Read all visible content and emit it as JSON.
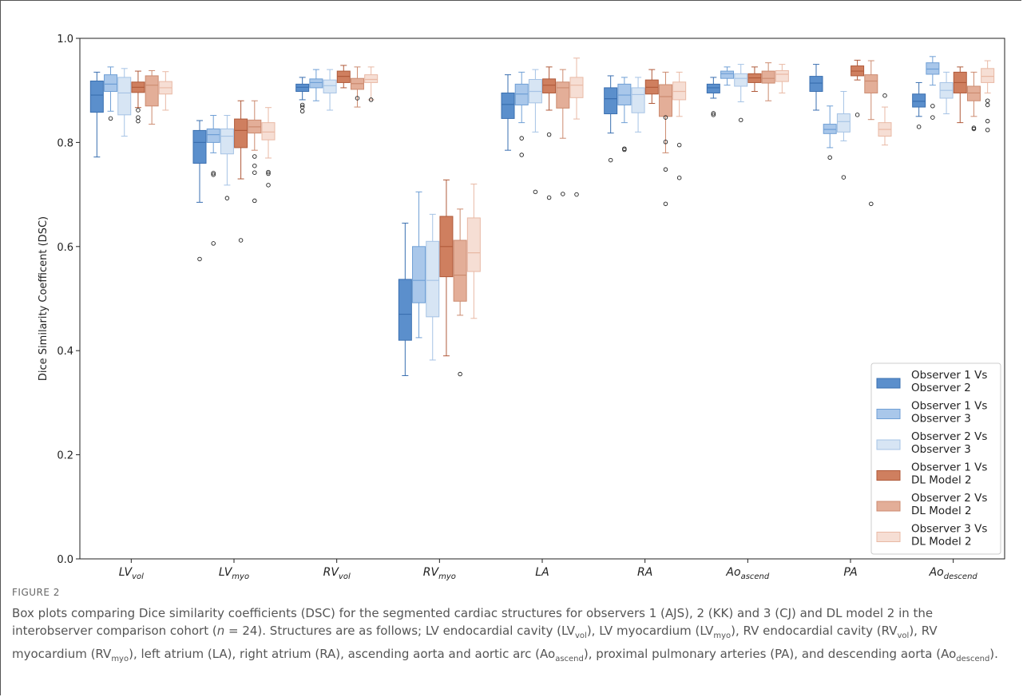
{
  "chart_data": {
    "type": "box",
    "ylabel": "Dice Similarity Coefficent (DSC)",
    "ylim": [
      0.0,
      1.0
    ],
    "yticks": [
      "0.0",
      "0.2",
      "0.4",
      "0.6",
      "0.8",
      "1.0"
    ],
    "grid": false,
    "legend_position": "lower-right",
    "categories": [
      {
        "base": "LV",
        "sub": "vol"
      },
      {
        "base": "LV",
        "sub": "myo"
      },
      {
        "base": "RV",
        "sub": "vol"
      },
      {
        "base": "RV",
        "sub": "myo"
      },
      {
        "base": "LA",
        "sub": ""
      },
      {
        "base": "RA",
        "sub": ""
      },
      {
        "base": "Ao",
        "sub": "ascend"
      },
      {
        "base": "PA",
        "sub": ""
      },
      {
        "base": "Ao",
        "sub": "descend"
      }
    ],
    "series": [
      {
        "name": "Observer 1 Vs Observer 2",
        "legend_lines": [
          "Observer 1 Vs",
          "Observer 2"
        ],
        "fill": "#5b8fcc",
        "line": "#3a6fb0",
        "boxes": [
          {
            "wlo": 0.772,
            "q1": 0.858,
            "med": 0.891,
            "q3": 0.918,
            "whi": 0.935,
            "out": []
          },
          {
            "wlo": 0.685,
            "q1": 0.76,
            "med": 0.8,
            "q3": 0.823,
            "whi": 0.842,
            "out": [
              0.576
            ]
          },
          {
            "wlo": 0.882,
            "q1": 0.898,
            "med": 0.906,
            "q3": 0.912,
            "whi": 0.925,
            "out": [
              0.872,
              0.868,
              0.86
            ]
          },
          {
            "wlo": 0.352,
            "q1": 0.42,
            "med": 0.47,
            "q3": 0.537,
            "whi": 0.645,
            "out": []
          },
          {
            "wlo": 0.785,
            "q1": 0.846,
            "med": 0.873,
            "q3": 0.895,
            "whi": 0.93,
            "out": []
          },
          {
            "wlo": 0.818,
            "q1": 0.855,
            "med": 0.884,
            "q3": 0.905,
            "whi": 0.928,
            "out": [
              0.766
            ]
          },
          {
            "wlo": 0.885,
            "q1": 0.895,
            "med": 0.905,
            "q3": 0.912,
            "whi": 0.925,
            "out": [
              0.856,
              0.853
            ]
          },
          {
            "wlo": 0.862,
            "q1": 0.898,
            "med": 0.914,
            "q3": 0.927,
            "whi": 0.95,
            "out": []
          },
          {
            "wlo": 0.85,
            "q1": 0.868,
            "med": 0.879,
            "q3": 0.893,
            "whi": 0.915,
            "out": [
              0.83
            ]
          }
        ]
      },
      {
        "name": "Observer 1 Vs Observer 3",
        "legend_lines": [
          "Observer 1 Vs",
          "Observer 3"
        ],
        "fill": "#a9c7ea",
        "line": "#6f9fd5",
        "boxes": [
          {
            "wlo": 0.86,
            "q1": 0.898,
            "med": 0.912,
            "q3": 0.93,
            "whi": 0.945,
            "out": [
              0.846
            ]
          },
          {
            "wlo": 0.78,
            "q1": 0.8,
            "med": 0.815,
            "q3": 0.826,
            "whi": 0.852,
            "out": [
              0.741,
              0.738,
              0.606
            ]
          },
          {
            "wlo": 0.88,
            "q1": 0.905,
            "med": 0.915,
            "q3": 0.922,
            "whi": 0.94,
            "out": []
          },
          {
            "wlo": 0.425,
            "q1": 0.492,
            "med": 0.535,
            "q3": 0.6,
            "whi": 0.705,
            "out": []
          },
          {
            "wlo": 0.838,
            "q1": 0.872,
            "med": 0.893,
            "q3": 0.912,
            "whi": 0.935,
            "out": [
              0.808,
              0.776
            ]
          },
          {
            "wlo": 0.838,
            "q1": 0.872,
            "med": 0.891,
            "q3": 0.912,
            "whi": 0.925,
            "out": [
              0.788,
              0.786
            ]
          },
          {
            "wlo": 0.91,
            "q1": 0.923,
            "med": 0.932,
            "q3": 0.937,
            "whi": 0.945,
            "out": []
          },
          {
            "wlo": 0.79,
            "q1": 0.817,
            "med": 0.825,
            "q3": 0.835,
            "whi": 0.87,
            "out": [
              0.771
            ]
          },
          {
            "wlo": 0.91,
            "q1": 0.931,
            "med": 0.941,
            "q3": 0.953,
            "whi": 0.965,
            "out": [
              0.87,
              0.848
            ]
          }
        ]
      },
      {
        "name": "Observer 2 Vs Observer 3",
        "legend_lines": [
          "Observer 2 Vs",
          "Observer 3"
        ],
        "fill": "#d7e5f4",
        "line": "#a6c3e5",
        "boxes": [
          {
            "wlo": 0.812,
            "q1": 0.853,
            "med": 0.895,
            "q3": 0.925,
            "whi": 0.942,
            "out": []
          },
          {
            "wlo": 0.718,
            "q1": 0.778,
            "med": 0.812,
            "q3": 0.826,
            "whi": 0.852,
            "out": [
              0.693
            ]
          },
          {
            "wlo": 0.862,
            "q1": 0.895,
            "med": 0.909,
            "q3": 0.92,
            "whi": 0.94,
            "out": []
          },
          {
            "wlo": 0.382,
            "q1": 0.465,
            "med": 0.535,
            "q3": 0.61,
            "whi": 0.662,
            "out": []
          },
          {
            "wlo": 0.82,
            "q1": 0.876,
            "med": 0.898,
            "q3": 0.921,
            "whi": 0.94,
            "out": [
              0.705
            ]
          },
          {
            "wlo": 0.82,
            "q1": 0.857,
            "med": 0.892,
            "q3": 0.905,
            "whi": 0.925,
            "out": []
          },
          {
            "wlo": 0.878,
            "q1": 0.908,
            "med": 0.923,
            "q3": 0.932,
            "whi": 0.95,
            "out": [
              0.843
            ]
          },
          {
            "wlo": 0.803,
            "q1": 0.82,
            "med": 0.84,
            "q3": 0.855,
            "whi": 0.898,
            "out": [
              0.733
            ]
          },
          {
            "wlo": 0.855,
            "q1": 0.885,
            "med": 0.9,
            "q3": 0.915,
            "whi": 0.935,
            "out": []
          }
        ]
      },
      {
        "name": "Observer 1 Vs DL Model 2",
        "legend_lines": [
          "Observer 1 Vs",
          "DL Model 2"
        ],
        "fill": "#cf7f5f",
        "line": "#b05a3a",
        "boxes": [
          {
            "wlo": 0.867,
            "q1": 0.896,
            "med": 0.906,
            "q3": 0.916,
            "whi": 0.937,
            "out": [
              0.862,
              0.848,
              0.841
            ]
          },
          {
            "wlo": 0.73,
            "q1": 0.79,
            "med": 0.823,
            "q3": 0.845,
            "whi": 0.88,
            "out": [
              0.612
            ]
          },
          {
            "wlo": 0.905,
            "q1": 0.915,
            "med": 0.927,
            "q3": 0.937,
            "whi": 0.948,
            "out": []
          },
          {
            "wlo": 0.39,
            "q1": 0.542,
            "med": 0.6,
            "q3": 0.658,
            "whi": 0.728,
            "out": []
          },
          {
            "wlo": 0.862,
            "q1": 0.895,
            "med": 0.91,
            "q3": 0.922,
            "whi": 0.945,
            "out": [
              0.815,
              0.694
            ]
          },
          {
            "wlo": 0.875,
            "q1": 0.893,
            "med": 0.906,
            "q3": 0.92,
            "whi": 0.94,
            "out": []
          },
          {
            "wlo": 0.898,
            "q1": 0.915,
            "med": 0.924,
            "q3": 0.932,
            "whi": 0.945,
            "out": []
          },
          {
            "wlo": 0.92,
            "q1": 0.928,
            "med": 0.937,
            "q3": 0.947,
            "whi": 0.958,
            "out": [
              0.853
            ]
          },
          {
            "wlo": 0.838,
            "q1": 0.895,
            "med": 0.915,
            "q3": 0.935,
            "whi": 0.945,
            "out": []
          }
        ]
      },
      {
        "name": "Observer 2 Vs DL Model 2",
        "legend_lines": [
          "Observer 2 Vs",
          "DL Model 2"
        ],
        "fill": "#e3ae98",
        "line": "#cc8b70",
        "boxes": [
          {
            "wlo": 0.835,
            "q1": 0.87,
            "med": 0.91,
            "q3": 0.928,
            "whi": 0.938,
            "out": []
          },
          {
            "wlo": 0.785,
            "q1": 0.818,
            "med": 0.83,
            "q3": 0.843,
            "whi": 0.88,
            "out": [
              0.773,
              0.755,
              0.742,
              0.688
            ]
          },
          {
            "wlo": 0.868,
            "q1": 0.902,
            "med": 0.913,
            "q3": 0.923,
            "whi": 0.945,
            "out": [
              0.885
            ]
          },
          {
            "wlo": 0.468,
            "q1": 0.495,
            "med": 0.545,
            "q3": 0.612,
            "whi": 0.672,
            "out": [
              0.355
            ]
          },
          {
            "wlo": 0.808,
            "q1": 0.866,
            "med": 0.905,
            "q3": 0.916,
            "whi": 0.94,
            "out": [
              0.701
            ]
          },
          {
            "wlo": 0.78,
            "q1": 0.85,
            "med": 0.888,
            "q3": 0.911,
            "whi": 0.935,
            "out": [
              0.848,
              0.801,
              0.748,
              0.682
            ]
          },
          {
            "wlo": 0.88,
            "q1": 0.914,
            "med": 0.923,
            "q3": 0.937,
            "whi": 0.953,
            "out": []
          },
          {
            "wlo": 0.844,
            "q1": 0.895,
            "med": 0.918,
            "q3": 0.93,
            "whi": 0.957,
            "out": [
              0.682
            ]
          },
          {
            "wlo": 0.85,
            "q1": 0.88,
            "med": 0.895,
            "q3": 0.908,
            "whi": 0.935,
            "out": [
              0.828,
              0.826
            ]
          }
        ]
      },
      {
        "name": "Observer 3 Vs DL Model 2",
        "legend_lines": [
          "Observer 3 Vs",
          "DL Model 2"
        ],
        "fill": "#f6ded4",
        "line": "#e9b9a5",
        "boxes": [
          {
            "wlo": 0.862,
            "q1": 0.893,
            "med": 0.905,
            "q3": 0.917,
            "whi": 0.936,
            "out": []
          },
          {
            "wlo": 0.77,
            "q1": 0.805,
            "med": 0.82,
            "q3": 0.838,
            "whi": 0.867,
            "out": [
              0.743,
              0.74,
              0.718
            ]
          },
          {
            "wlo": 0.882,
            "q1": 0.915,
            "med": 0.921,
            "q3": 0.93,
            "whi": 0.945,
            "out": [
              0.882
            ]
          },
          {
            "wlo": 0.462,
            "q1": 0.552,
            "med": 0.588,
            "q3": 0.655,
            "whi": 0.72,
            "out": []
          },
          {
            "wlo": 0.845,
            "q1": 0.886,
            "med": 0.91,
            "q3": 0.925,
            "whi": 0.962,
            "out": [
              0.7
            ]
          },
          {
            "wlo": 0.85,
            "q1": 0.882,
            "med": 0.898,
            "q3": 0.916,
            "whi": 0.935,
            "out": [
              0.795,
              0.732
            ]
          },
          {
            "wlo": 0.895,
            "q1": 0.917,
            "med": 0.931,
            "q3": 0.938,
            "whi": 0.95,
            "out": []
          },
          {
            "wlo": 0.795,
            "q1": 0.812,
            "med": 0.825,
            "q3": 0.838,
            "whi": 0.868,
            "out": [
              0.89
            ]
          },
          {
            "wlo": 0.895,
            "q1": 0.915,
            "med": 0.927,
            "q3": 0.942,
            "whi": 0.957,
            "out": [
              0.88,
              0.872,
              0.841,
              0.824
            ]
          }
        ]
      }
    ]
  },
  "caption": {
    "figure_label": "FIGURE 2",
    "text_html": "Box plots comparing Dice similarity coefficients (DSC) for the segmented cardiac structures for observers 1 (AJS), 2 (KK) and 3 (CJ) and DL model 2 in the interobserver comparison cohort (<i>n</i> = 24). Structures are as follows; LV endocardial cavity (LV<sub>vol</sub>), LV myocardium (LV<sub>myo</sub>), RV endocardial cavity (RV<sub>vol</sub>), RV myocardium (RV<sub>myo</sub>), left atrium (LA), right atrium (RA), ascending aorta and aortic arc (Ao<sub>ascend</sub>), proximal pulmonary arteries (PA), and descending aorta (Ao<sub>descend</sub>)."
  }
}
